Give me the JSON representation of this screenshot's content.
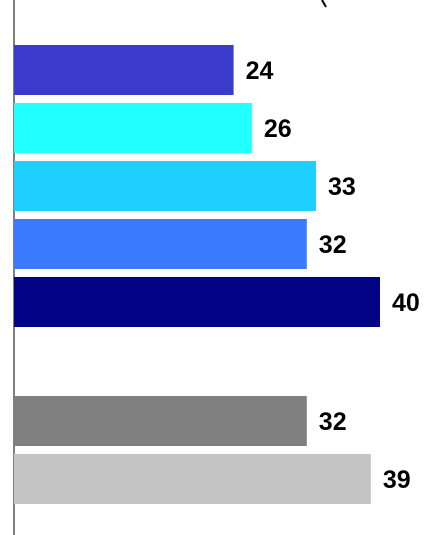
{
  "chart_data": {
    "type": "bar",
    "orientation": "horizontal",
    "values": [
      24,
      26,
      33,
      32,
      40,
      32,
      39
    ],
    "colors": [
      "#3a3acc",
      "#22ffff",
      "#1ecfff",
      "#3a7aff",
      "#030385",
      "#808080",
      "#c4c4c4"
    ],
    "groups": [
      [
        0,
        1,
        2,
        3,
        4
      ],
      [
        5,
        6
      ]
    ],
    "title": "",
    "xlabel": "",
    "ylabel": "",
    "xlim": [
      0,
      42
    ],
    "grid": false,
    "legend": "none"
  }
}
